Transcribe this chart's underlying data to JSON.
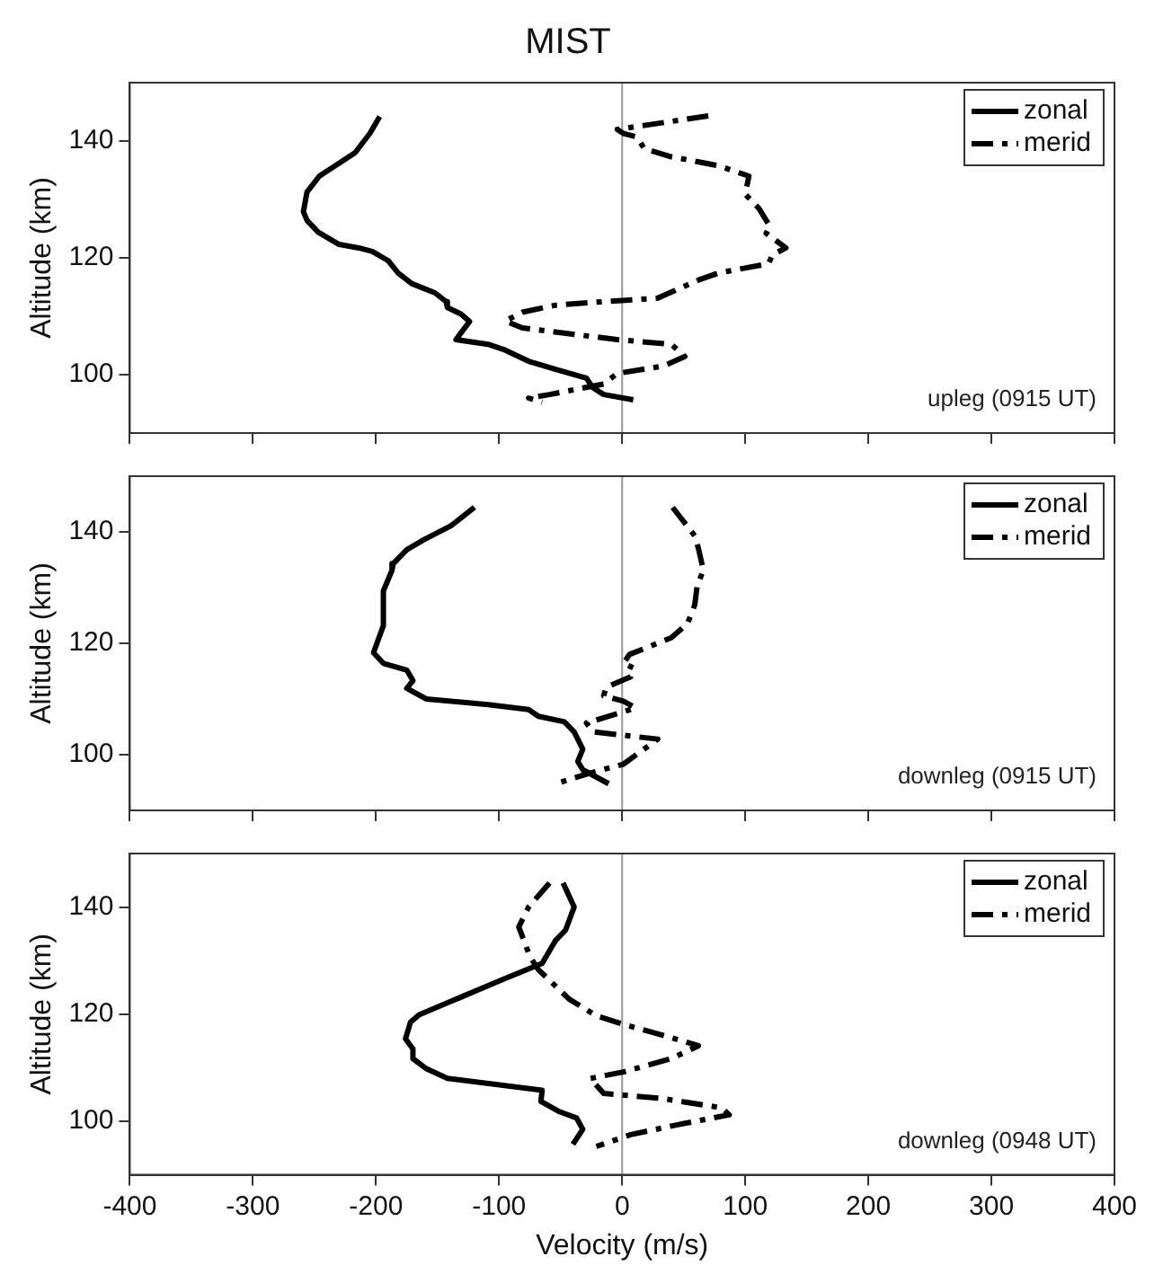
{
  "chart_data": [
    {
      "type": "line",
      "title": "MIST",
      "ylabel": "Altitude (km)",
      "annotations": [
        "upleg (0915 UT)"
      ],
      "xlim": [
        -400,
        400
      ],
      "xticks": [
        -400,
        -300,
        -200,
        -100,
        0,
        100,
        200,
        300,
        400
      ],
      "ylim": [
        90,
        150
      ],
      "yticks": [
        100,
        120,
        140
      ],
      "tick_labels": "y",
      "grid": false,
      "legend": "top right",
      "marker": "none",
      "ref_lines": [
        {
          "axis": "x",
          "value": 0,
          "color": "#999999"
        }
      ],
      "series": [
        {
          "name": "zonal",
          "color": "#000000",
          "line_style": "solid",
          "x": [
            -197,
            -205,
            -217,
            -246,
            -256,
            -259,
            -256,
            -247,
            -230,
            -214,
            -203,
            -190,
            -182,
            -171,
            -152,
            -143,
            -142,
            -131,
            -124,
            -135,
            -109,
            -95,
            -76,
            -54,
            -29,
            -24,
            -15,
            9
          ],
          "values": [
            144.2,
            141.3,
            138,
            134,
            131.3,
            127.9,
            126.4,
            124.4,
            122.3,
            121.7,
            121.1,
            119.5,
            117.4,
            115.6,
            114,
            112.5,
            111.5,
            110.4,
            109.1,
            106,
            105.2,
            104.2,
            102.3,
            100.9,
            99.4,
            97.8,
            96.6,
            95.7
          ]
        },
        {
          "name": "merid",
          "color": "#000000",
          "line_style": "dashed",
          "x": [
            70,
            -4,
            1,
            12,
            18,
            40,
            78,
            103,
            100,
            111,
            120,
            117,
            133,
            122,
            119,
            78,
            62,
            29,
            -15,
            -54,
            -81,
            -95,
            -81,
            -4,
            40,
            51,
            34,
            -4,
            -15,
            -59,
            -76,
            -65
          ],
          "values": [
            144.3,
            142,
            141.3,
            140.7,
            138.7,
            137.3,
            135.8,
            134,
            130.9,
            128.5,
            125.4,
            124.2,
            121.7,
            120.5,
            119,
            117.4,
            116.2,
            113.1,
            112.5,
            111.9,
            110.7,
            109.2,
            108,
            106,
            105.2,
            103.1,
            101.5,
            100.2,
            98.4,
            96.6,
            96,
            95.3
          ]
        }
      ]
    },
    {
      "type": "line",
      "ylabel": "Altitude (km)",
      "annotations": [
        "downleg (0915 UT)"
      ],
      "xlim": [
        -400,
        400
      ],
      "xticks": [
        -400,
        -300,
        -200,
        -100,
        0,
        100,
        200,
        300,
        400
      ],
      "ylim": [
        90,
        150
      ],
      "yticks": [
        100,
        120,
        140
      ],
      "tick_labels": "y",
      "grid": false,
      "legend": "top right",
      "marker": "none",
      "ref_lines": [
        {
          "axis": "x",
          "value": 0,
          "color": "#999999"
        }
      ],
      "series": [
        {
          "name": "zonal",
          "color": "#000000",
          "line_style": "solid",
          "x": [
            -120,
            -139,
            -161,
            -175,
            -186,
            -187,
            -194,
            -194,
            -202,
            -194,
            -175,
            -170,
            -175,
            -159,
            -109,
            -76,
            -68,
            -47,
            -39,
            -32,
            -36,
            -32,
            -11
          ],
          "values": [
            144.4,
            141.1,
            138.6,
            136.8,
            134.3,
            133.1,
            129.4,
            123.2,
            118.3,
            116.4,
            115.2,
            113.3,
            111.9,
            110,
            109,
            108.1,
            106.9,
            105.9,
            104.1,
            101,
            98.8,
            97.3,
            94.8
          ]
        },
        {
          "name": "merid",
          "color": "#000000",
          "line_style": "dashed",
          "x": [
            41,
            59,
            62,
            66,
            61,
            59,
            53,
            40,
            6,
            1,
            9,
            7,
            -13,
            -15,
            1,
            11,
            -29,
            -24,
            29,
            1,
            -26,
            -54
          ],
          "values": [
            144.4,
            139.3,
            137,
            133.1,
            130.4,
            126.9,
            123.5,
            121,
            118,
            116.4,
            115.6,
            114,
            112.1,
            110.6,
            109.6,
            108.4,
            105.7,
            104.1,
            102.8,
            98.3,
            96.7,
            94.8
          ]
        }
      ]
    },
    {
      "type": "line",
      "xlabel": "Velocity (m/s)",
      "ylabel": "Altitude (km)",
      "annotations": [
        "downleg (0948 UT)"
      ],
      "xlim": [
        -400,
        400
      ],
      "xticks": [
        -400,
        -300,
        -200,
        -100,
        0,
        100,
        200,
        300,
        400
      ],
      "ylim": [
        90,
        150
      ],
      "yticks": [
        100,
        120,
        140
      ],
      "grid": false,
      "legend": "top right",
      "marker": "none",
      "ref_lines": [
        {
          "axis": "x",
          "value": 0,
          "color": "#999999"
        }
      ],
      "series": [
        {
          "name": "zonal",
          "color": "#000000",
          "line_style": "solid",
          "x": [
            -48,
            -39,
            -46,
            -54,
            -65,
            -98,
            -137,
            -165,
            -172,
            -176,
            -170,
            -170,
            -159,
            -142,
            -65,
            -66,
            -51,
            -37,
            -32,
            -40
          ],
          "values": [
            144.5,
            140,
            135.7,
            133.8,
            129.5,
            126.4,
            122.6,
            119.9,
            118.5,
            115.4,
            113.5,
            111.7,
            109.8,
            108,
            105.8,
            103.7,
            101.8,
            100.6,
            98.5,
            95.7
          ]
        },
        {
          "name": "merid",
          "color": "#000000",
          "line_style": "dashed",
          "x": [
            -59,
            -76,
            -84,
            -75,
            -68,
            -43,
            -21,
            1,
            34,
            62,
            40,
            1,
            -26,
            -15,
            31,
            81,
            87,
            46,
            7,
            -21
          ],
          "values": [
            144.5,
            140,
            136.3,
            130.8,
            128.3,
            122.8,
            119.7,
            118.1,
            116,
            114.1,
            111.7,
            109.2,
            108,
            105.2,
            104.3,
            102.5,
            101.2,
            99.4,
            97.5,
            95.3
          ]
        }
      ]
    }
  ]
}
